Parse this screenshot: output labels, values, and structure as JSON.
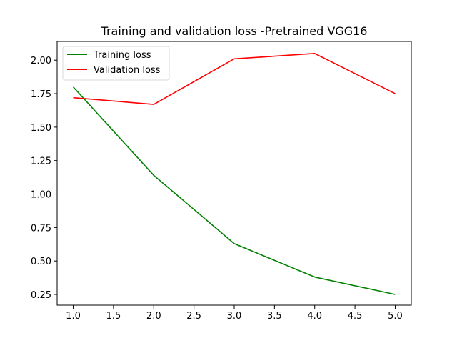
{
  "chart_data": {
    "type": "line",
    "title": "Training and validation loss -Pretrained VGG16",
    "xlabel": "",
    "ylabel": "",
    "x": [
      1,
      2,
      3,
      4,
      5
    ],
    "series": [
      {
        "name": "Training loss",
        "color": "#008000",
        "values": [
          1.8,
          1.14,
          0.63,
          0.38,
          0.25
        ]
      },
      {
        "name": "Validation loss",
        "color": "#ff0000",
        "values": [
          1.72,
          1.67,
          2.01,
          2.05,
          1.75
        ]
      }
    ],
    "xlim": [
      0.8,
      5.2
    ],
    "ylim": [
      0.17,
      2.14
    ],
    "xticks": [
      "1.0",
      "1.5",
      "2.0",
      "2.5",
      "3.0",
      "3.5",
      "4.0",
      "4.5",
      "5.0"
    ],
    "yticks": [
      "0.25",
      "0.50",
      "0.75",
      "1.00",
      "1.25",
      "1.50",
      "1.75",
      "2.00"
    ],
    "grid": false,
    "legend": "upper-left"
  }
}
